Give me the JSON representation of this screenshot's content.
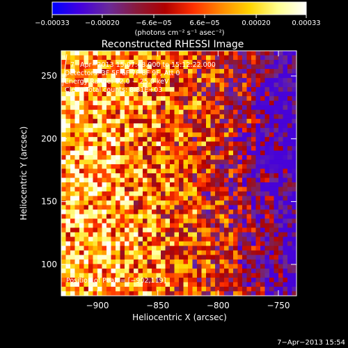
{
  "chart_data": {
    "type": "heatmap",
    "title": "Reconstructed RHESSI Image",
    "xlabel": "Heliocentric X (arcsec)",
    "ylabel": "Heliocentric Y (arcsec)",
    "xlim": [
      -930,
      -735
    ],
    "ylim": [
      75,
      270
    ],
    "x_ticks": [
      -900,
      -850,
      -800,
      -750
    ],
    "x_tick_labels": [
      "−900",
      "−850",
      "−800",
      "−750"
    ],
    "y_ticks": [
      100,
      150,
      200,
      250
    ],
    "y_tick_labels": [
      "100",
      "150",
      "200",
      "250"
    ],
    "colorbar": {
      "range": [
        -0.00033,
        0.00033
      ],
      "ticks": [
        -0.00033,
        -0.0002,
        -6.6e-05,
        6.6e-05,
        0.0002,
        0.00033
      ],
      "tick_labels": [
        "−0.00033",
        "−0.00020",
        "−6.6e−05",
        "6.6e−05",
        "0.00020",
        "0.00033"
      ],
      "units": "(photons cm⁻² s⁻¹ asec⁻²)",
      "colors": [
        "#0000ff",
        "#4400dd",
        "#6a2a9a",
        "#8a1a3a",
        "#b00000",
        "#ff3000",
        "#ff8a00",
        "#ffd400",
        "#ffff90",
        "#ffffff"
      ]
    },
    "annotations": [
      "7−Apr−2013 15:07:48.000 to 15:12:22.000",
      "Detectors: 3F 5F 6F 7F 8F 9F, Att 0",
      "Energy Range: 12.0 − 25.0 keV",
      "Clean     Total counts: 8.31E+03"
    ],
    "peak_label": "Position of Peak = [−902,119]",
    "peak": [
      -902,
      119
    ],
    "timestamp": "7−Apr−2013 15:54"
  }
}
